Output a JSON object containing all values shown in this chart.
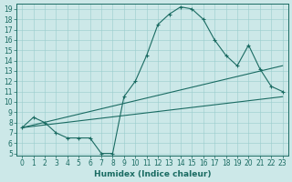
{
  "title": "",
  "xlabel": "Humidex (Indice chaleur)",
  "ylabel": "",
  "xlim": [
    -0.5,
    23.5
  ],
  "ylim": [
    4.8,
    19.5
  ],
  "xticks": [
    0,
    1,
    2,
    3,
    4,
    5,
    6,
    7,
    8,
    9,
    10,
    11,
    12,
    13,
    14,
    15,
    16,
    17,
    18,
    19,
    20,
    21,
    22,
    23
  ],
  "yticks": [
    5,
    6,
    7,
    8,
    9,
    10,
    11,
    12,
    13,
    14,
    15,
    16,
    17,
    18,
    19
  ],
  "bg_color": "#cce8e8",
  "line_color": "#1a6b62",
  "grid_color": "#99cccc",
  "line1_x": [
    0,
    1,
    2,
    3,
    4,
    5,
    6,
    7,
    8,
    9,
    10,
    11,
    12,
    13,
    14,
    15,
    16,
    17,
    18,
    19,
    20,
    21,
    22,
    23
  ],
  "line1_y": [
    7.5,
    8.5,
    8.0,
    7.0,
    6.5,
    6.5,
    6.5,
    5.0,
    5.0,
    10.5,
    12.0,
    14.5,
    17.5,
    18.5,
    19.2,
    19.0,
    18.0,
    16.0,
    14.5,
    13.5,
    15.5,
    13.2,
    11.5,
    11.0
  ],
  "line2_x": [
    0,
    23
  ],
  "line2_y": [
    7.5,
    10.5
  ],
  "line3_x": [
    0,
    23
  ],
  "line3_y": [
    7.5,
    13.5
  ],
  "tick_fontsize": 5.5,
  "xlabel_fontsize": 6.5,
  "marker_size": 3,
  "linewidth": 0.8
}
